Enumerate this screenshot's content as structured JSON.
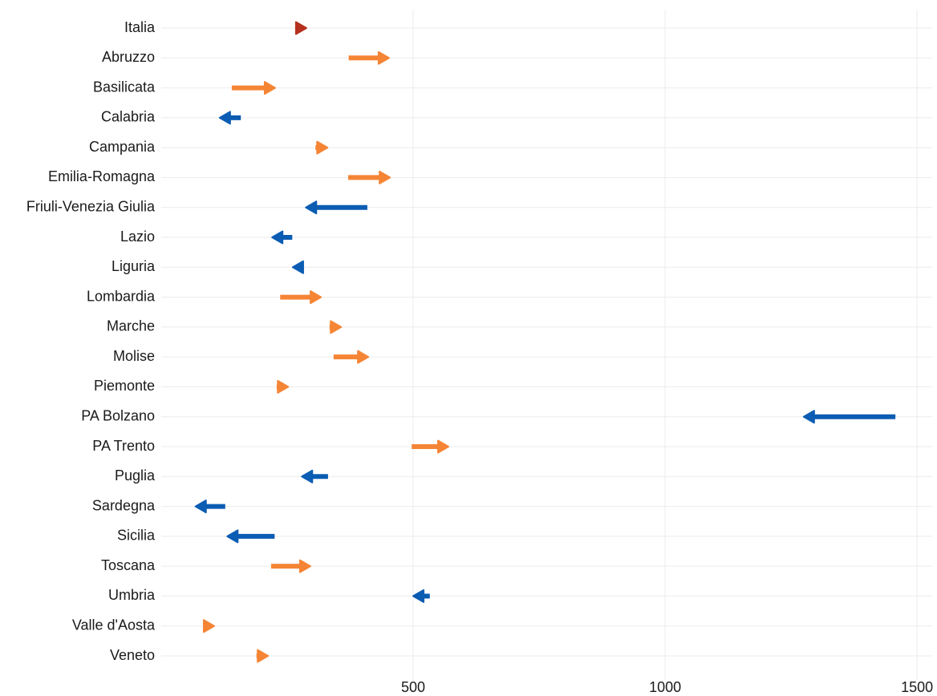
{
  "chart_data": {
    "type": "arrow",
    "categories": [
      "Italia",
      "Abruzzo",
      "Basilicata",
      "Calabria",
      "Campania",
      "Emilia-Romagna",
      "Friuli-Venezia Giulia",
      "Lazio",
      "Liguria",
      "Lombardia",
      "Marche",
      "Molise",
      "Piemonte",
      "PA Bolzano",
      "PA Trento",
      "Puglia",
      "Sardegna",
      "Sicilia",
      "Toscana",
      "Umbria",
      "Valle d'Aosta",
      "Veneto"
    ],
    "start": [
      272,
      372,
      140,
      158,
      306,
      371,
      409,
      260,
      282,
      236,
      334,
      342,
      229,
      1457,
      497,
      331,
      127,
      225,
      218,
      533,
      84,
      189
    ],
    "end": [
      288,
      452,
      226,
      116,
      330,
      454,
      287,
      220,
      261,
      317,
      357,
      411,
      252,
      1275,
      570,
      279,
      68,
      131,
      296,
      500,
      105,
      212
    ],
    "colors": [
      "#b5301f",
      "#f58535",
      "#f58535",
      "#0b5cb3",
      "#f58535",
      "#f58535",
      "#0b5cb3",
      "#0b5cb3",
      "#0b5cb3",
      "#f58535",
      "#f58535",
      "#f58535",
      "#f58535",
      "#0b5cb3",
      "#f58535",
      "#0b5cb3",
      "#0b5cb3",
      "#0b5cb3",
      "#f58535",
      "#0b5cb3",
      "#f58535",
      "#f58535"
    ],
    "xlim": [
      0,
      1530
    ],
    "xticks": [
      500,
      1000,
      1500
    ],
    "grid": true
  }
}
